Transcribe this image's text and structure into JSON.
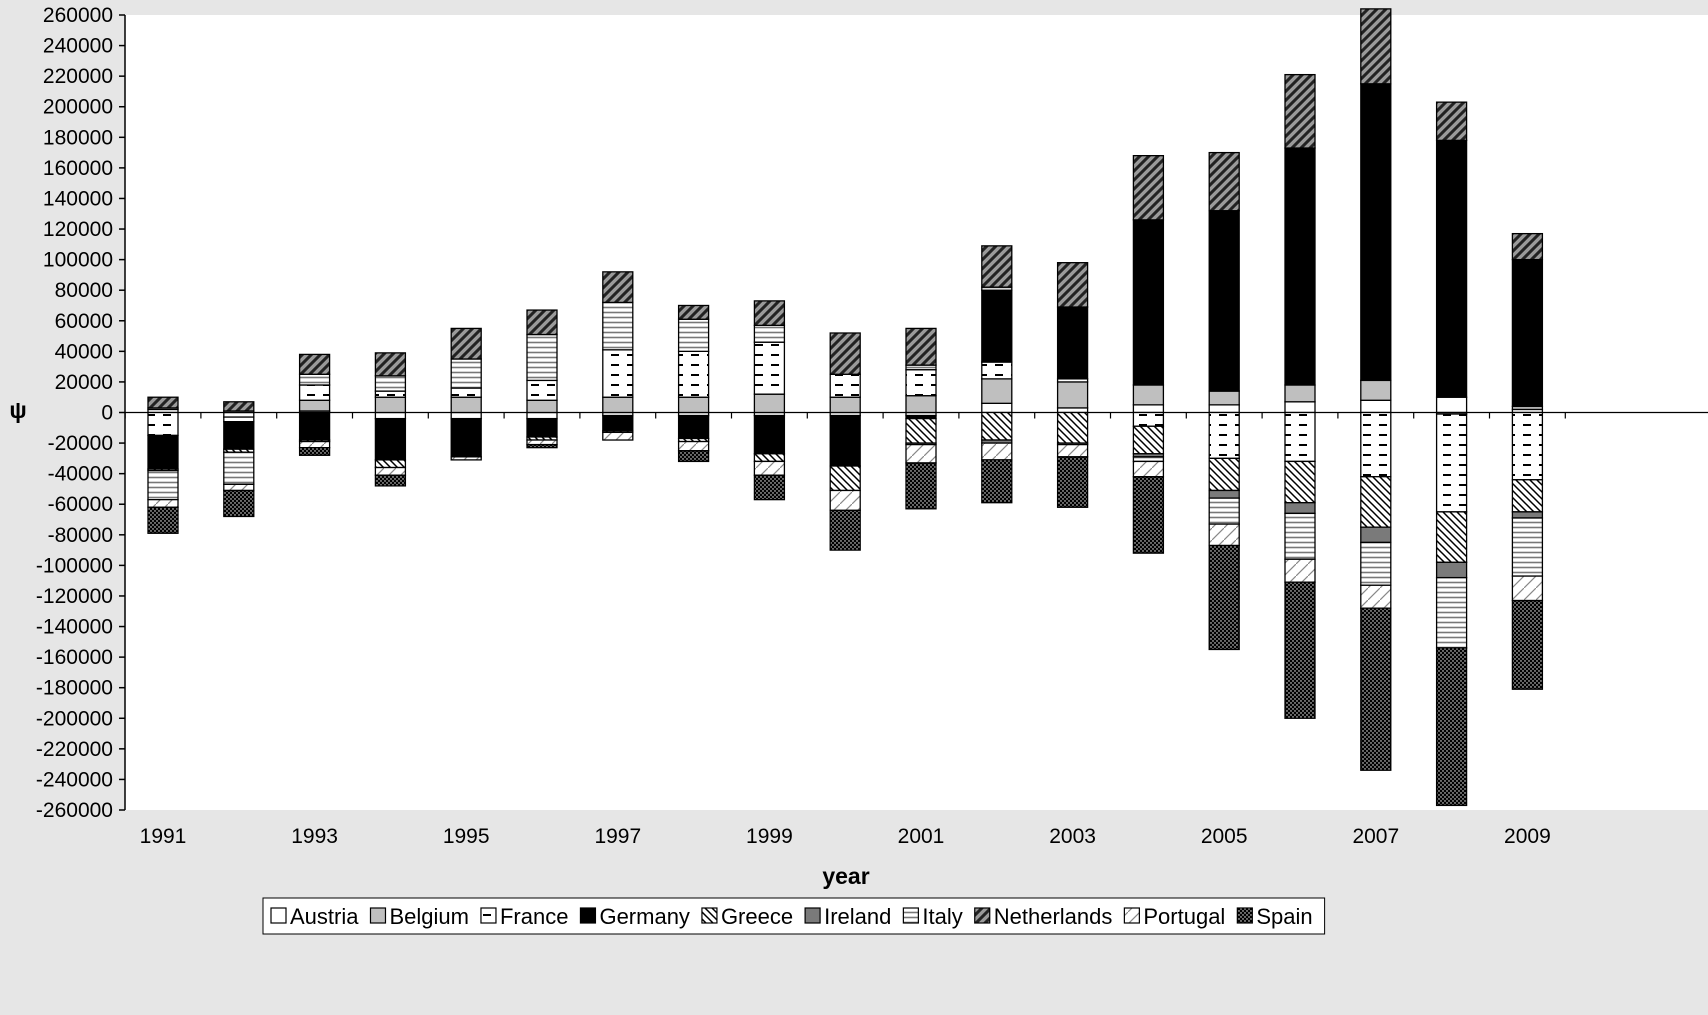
{
  "chart_data": {
    "type": "bar",
    "stacked": true,
    "xlabel": "year",
    "ylabel": "ψ",
    "ylim": [
      -260000,
      260000
    ],
    "y_tick_step": 20000,
    "x_tick_labels": [
      "1991",
      "1993",
      "1995",
      "1997",
      "1999",
      "2001",
      "2003",
      "2005",
      "2007",
      "2009"
    ],
    "legend_position": "bottom",
    "categories": [
      "1991",
      "1992",
      "1993",
      "1994",
      "1995",
      "1996",
      "1997",
      "1998",
      "1999",
      "2000",
      "2001",
      "2002",
      "2003",
      "2004",
      "2005",
      "2006",
      "2007",
      "2008",
      "2009"
    ],
    "series": [
      {
        "name": "Austria",
        "pattern": "white",
        "values": [
          2000,
          -3000,
          1000,
          -4000,
          -4000,
          -4000,
          -2000,
          -2000,
          -2000,
          -2000,
          -2000,
          6000,
          3000,
          5000,
          5000,
          7000,
          8000,
          10000,
          2000
        ]
      },
      {
        "name": "Belgium",
        "pattern": "gray",
        "values": [
          1000,
          1000,
          7000,
          10000,
          10000,
          8000,
          10000,
          10000,
          12000,
          10000,
          11000,
          16000,
          17000,
          13000,
          9000,
          11000,
          13000,
          -1000,
          2000
        ]
      },
      {
        "name": "France",
        "pattern": "dashes",
        "values": [
          -15000,
          -3000,
          10000,
          4000,
          6000,
          13000,
          31000,
          30000,
          34000,
          15000,
          17000,
          11000,
          2000,
          -9000,
          -30000,
          -32000,
          -42000,
          -64000,
          -44000
        ]
      },
      {
        "name": "Germany",
        "pattern": "black",
        "values": [
          -22000,
          -18000,
          -18000,
          -27000,
          -25000,
          -12000,
          -10000,
          -15000,
          -25000,
          -33000,
          -2000,
          47000,
          47000,
          108000,
          118000,
          155000,
          194000,
          168000,
          96000
        ]
      },
      {
        "name": "Greece",
        "pattern": "diag",
        "values": [
          -1000,
          -2000,
          -1000,
          -5000,
          0,
          -2000,
          -1000,
          -2000,
          -5000,
          -16000,
          -16000,
          -18000,
          -20000,
          -18000,
          -21000,
          -27000,
          -33000,
          -33000,
          -21000
        ]
      },
      {
        "name": "Ireland",
        "pattern": "darkgray",
        "values": [
          0,
          0,
          0,
          0,
          0,
          0,
          0,
          0,
          0,
          0,
          -1000,
          -2000,
          -1000,
          -2000,
          -5000,
          -7000,
          -10000,
          -10000,
          -4000
        ]
      },
      {
        "name": "Italy",
        "pattern": "hlines",
        "values": [
          -19000,
          -21000,
          7000,
          10000,
          19000,
          30000,
          31000,
          21000,
          11000,
          0,
          3000,
          2000,
          0,
          -3000,
          -17000,
          -30000,
          -28000,
          -46000,
          -38000
        ]
      },
      {
        "name": "Netherlands",
        "pattern": "darkdiag",
        "values": [
          7000,
          6000,
          13000,
          15000,
          20000,
          16000,
          20000,
          9000,
          16000,
          27000,
          24000,
          27000,
          29000,
          42000,
          38000,
          48000,
          49000,
          25000,
          17000
        ]
      },
      {
        "name": "Portugal",
        "pattern": "lightdiag",
        "values": [
          -5000,
          -4000,
          -4000,
          -5000,
          -2000,
          -3000,
          -5000,
          -6000,
          -9000,
          -13000,
          -12000,
          -11000,
          -8000,
          -10000,
          -14000,
          -15000,
          -15000,
          0,
          -16000
        ]
      },
      {
        "name": "Spain",
        "pattern": "dots",
        "values": [
          -17000,
          -17000,
          -5000,
          -7000,
          0,
          -2000,
          0,
          -7000,
          -16000,
          -26000,
          -30000,
          -28000,
          -33000,
          -50000,
          -68000,
          -89000,
          -106000,
          -103000,
          -58000
        ]
      }
    ]
  }
}
